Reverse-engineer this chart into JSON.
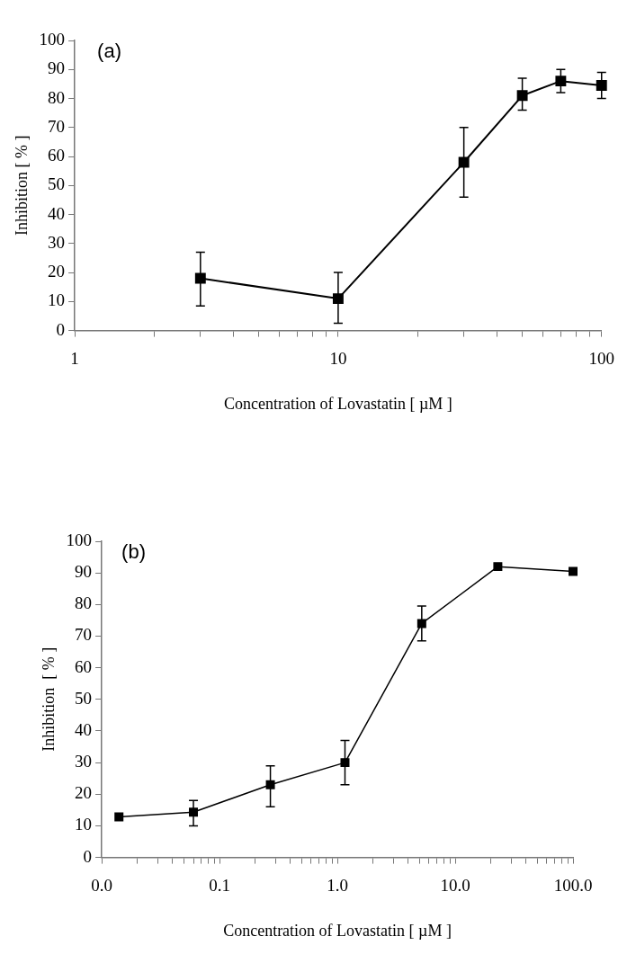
{
  "chart_data": [
    {
      "type": "line",
      "xlabel": "Concentration of Lovastatin [ µM ]",
      "ylabel": "Inhibition [ % ]",
      "annotations": [
        "(a)"
      ],
      "log": "x",
      "grid": false,
      "legend": false,
      "marker": "square",
      "line_style": "solid",
      "xlim": [
        1,
        100
      ],
      "xticks": [
        1,
        {
          "value": 2,
          "label": null
        },
        {
          "value": 3,
          "label": null
        },
        {
          "value": 4,
          "label": null
        },
        {
          "value": 5,
          "label": null
        },
        {
          "value": 6,
          "label": null
        },
        {
          "value": 7,
          "label": null
        },
        {
          "value": 8,
          "label": null
        },
        {
          "value": 9,
          "label": null
        },
        10,
        {
          "value": 20,
          "label": null
        },
        {
          "value": 30,
          "label": null
        },
        {
          "value": 40,
          "label": null
        },
        {
          "value": 50,
          "label": null
        },
        {
          "value": 60,
          "label": null
        },
        {
          "value": 70,
          "label": null
        },
        {
          "value": 80,
          "label": null
        },
        {
          "value": 90,
          "label": null
        },
        100
      ],
      "ylim": [
        0,
        100
      ],
      "yticks": [
        0,
        10,
        20,
        30,
        40,
        50,
        60,
        70,
        80,
        90,
        100
      ],
      "series": [
        {
          "color": "#000000",
          "x": [
            3,
            10,
            30,
            50,
            70,
            100
          ],
          "values": [
            18,
            11,
            58,
            81,
            86,
            84.5
          ],
          "errors": [
            [
              8.5,
              27
            ],
            [
              2.5,
              20
            ],
            [
              46,
              70
            ],
            [
              76,
              87
            ],
            [
              82,
              90
            ],
            [
              80,
              89
            ]
          ]
        }
      ]
    },
    {
      "type": "line",
      "xlabel": "Concentration of Lovastatin [ µM ]",
      "ylabel": "Inhibition  [ % ]",
      "annotations": [
        "(b)"
      ],
      "log": "x",
      "grid": false,
      "legend": false,
      "marker": "square",
      "line_style": "solid",
      "xlim": [
        0.01,
        100
      ],
      "xticks": [
        {
          "value": 0.01,
          "label": "0.0"
        },
        {
          "value": 0.02,
          "label": null
        },
        {
          "value": 0.03,
          "label": null
        },
        {
          "value": 0.04,
          "label": null
        },
        {
          "value": 0.05,
          "label": null
        },
        {
          "value": 0.06,
          "label": null
        },
        {
          "value": 0.07,
          "label": null
        },
        {
          "value": 0.08,
          "label": null
        },
        {
          "value": 0.09,
          "label": null
        },
        {
          "value": 0.1,
          "label": "0.1"
        },
        {
          "value": 0.2,
          "label": null
        },
        {
          "value": 0.3,
          "label": null
        },
        {
          "value": 0.4,
          "label": null
        },
        {
          "value": 0.5,
          "label": null
        },
        {
          "value": 0.6,
          "label": null
        },
        {
          "value": 0.7,
          "label": null
        },
        {
          "value": 0.8,
          "label": null
        },
        {
          "value": 0.9,
          "label": null
        },
        {
          "value": 1,
          "label": "1.0"
        },
        {
          "value": 2,
          "label": null
        },
        {
          "value": 3,
          "label": null
        },
        {
          "value": 4,
          "label": null
        },
        {
          "value": 5,
          "label": null
        },
        {
          "value": 6,
          "label": null
        },
        {
          "value": 7,
          "label": null
        },
        {
          "value": 8,
          "label": null
        },
        {
          "value": 9,
          "label": null
        },
        {
          "value": 10,
          "label": "10.0"
        },
        {
          "value": 20,
          "label": null
        },
        {
          "value": 30,
          "label": null
        },
        {
          "value": 40,
          "label": null
        },
        {
          "value": 50,
          "label": null
        },
        {
          "value": 60,
          "label": null
        },
        {
          "value": 70,
          "label": null
        },
        {
          "value": 80,
          "label": null
        },
        {
          "value": 90,
          "label": null
        },
        {
          "value": 100,
          "label": "100.0"
        }
      ],
      "ylim": [
        0,
        100
      ],
      "yticks": [
        0,
        10,
        20,
        30,
        40,
        50,
        60,
        70,
        80,
        90,
        100
      ],
      "series": [
        {
          "color": "#000000",
          "x": [
            0.014,
            0.06,
            0.27,
            1.16,
            5.2,
            23,
            100
          ],
          "values": [
            12.8,
            14.3,
            23,
            30,
            74,
            92,
            90.5
          ],
          "errors": [
            null,
            [
              10,
              18
            ],
            [
              16,
              29
            ],
            [
              23,
              37
            ],
            [
              68.5,
              79.5
            ],
            null,
            null
          ]
        }
      ]
    }
  ]
}
